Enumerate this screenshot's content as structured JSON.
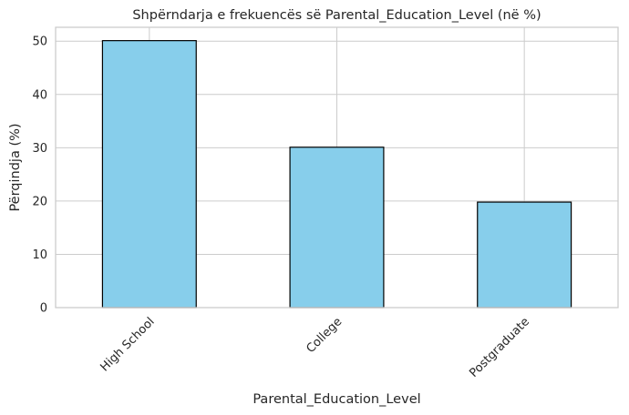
{
  "chart_data": {
    "type": "bar",
    "title": "Shpërndarja e frekuencës së Parental_Education_Level (në %)",
    "xlabel": "Parental_Education_Level",
    "ylabel": "Përqindja (%)",
    "categories": [
      "High School",
      "College",
      "Postgraduate"
    ],
    "values": [
      50.1,
      30.1,
      19.8
    ],
    "ylim": [
      0,
      52.6
    ],
    "yticks": [
      0,
      10,
      20,
      30,
      40,
      50
    ],
    "grid": true,
    "bar_color": "#87ceeb",
    "bar_edge_color": "#000000"
  }
}
